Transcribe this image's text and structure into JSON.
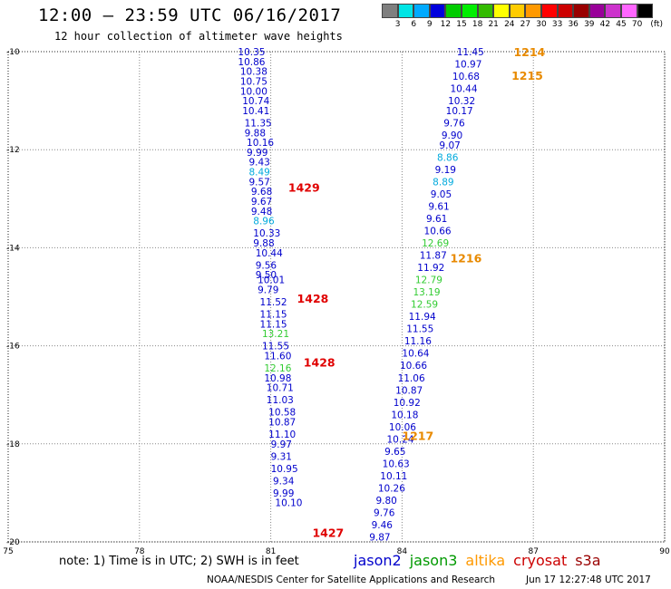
{
  "header": {
    "title": "12:00 — 23:59 UTC 06/16/2017",
    "subtitle": "12 hour collection of altimeter wave heights"
  },
  "color_scale": {
    "colors": [
      "#7f7f7f",
      "#00e5e5",
      "#00aaff",
      "#0000dd",
      "#00cc00",
      "#00ee00",
      "#33bb00",
      "#ffff00",
      "#ffcc00",
      "#ff9900",
      "#ff0000",
      "#cc0000",
      "#990000",
      "#990099",
      "#cc33cc",
      "#ff66ff",
      "#000000"
    ],
    "labels": [
      "3",
      "6",
      "9",
      "12",
      "15",
      "18",
      "21",
      "24",
      "27",
      "30",
      "33",
      "36",
      "39",
      "42",
      "45",
      "70",
      "(ft)"
    ]
  },
  "map": {
    "x_ticks": [
      "75",
      "78",
      "81",
      "84",
      "87",
      "90"
    ],
    "y_ticks": [
      "-10",
      "-12",
      "-14",
      "-16",
      "-18",
      "-20"
    ],
    "lon_range": [
      75,
      90
    ],
    "lat_range": [
      -20,
      -10
    ]
  },
  "chart_data": {
    "type": "scatter",
    "x_unit": "longitude (E)",
    "y_unit": "latitude",
    "track_labels": [
      {
        "text": "1429",
        "color": "#e00000",
        "lon": 81.4,
        "lat": -12.78
      },
      {
        "text": "1428",
        "color": "#e00000",
        "lon": 81.6,
        "lat": -15.05
      },
      {
        "text": "1428",
        "color": "#e00000",
        "lon": 81.75,
        "lat": -16.35
      },
      {
        "text": "1427",
        "color": "#e00000",
        "lon": 81.95,
        "lat": -19.82
      },
      {
        "text": "1214",
        "color": "#e88a00",
        "lon": 86.55,
        "lat": -10.02
      },
      {
        "text": "1215",
        "color": "#e88a00",
        "lon": 86.5,
        "lat": -10.5
      },
      {
        "text": "1216",
        "color": "#e88a00",
        "lon": 85.1,
        "lat": -14.22
      },
      {
        "text": "1217",
        "color": "#e88a00",
        "lon": 84.0,
        "lat": -17.85
      }
    ],
    "pass_1429": [
      {
        "lon": 80.25,
        "lat": -10.0,
        "value": "10.35",
        "color": "#0000cc"
      },
      {
        "lon": 80.25,
        "lat": -10.2,
        "value": "10.86",
        "color": "#0000cc"
      },
      {
        "lon": 80.3,
        "lat": -10.4,
        "value": "10.38",
        "color": "#0000cc"
      },
      {
        "lon": 80.3,
        "lat": -10.6,
        "value": "10.75",
        "color": "#0000cc"
      },
      {
        "lon": 80.3,
        "lat": -10.8,
        "value": "10.00",
        "color": "#0000cc"
      },
      {
        "lon": 80.35,
        "lat": -11.0,
        "value": "10.74",
        "color": "#0000cc"
      },
      {
        "lon": 80.35,
        "lat": -11.2,
        "value": "10.41",
        "color": "#0000cc"
      },
      {
        "lon": 80.4,
        "lat": -11.45,
        "value": "11.35",
        "color": "#0000cc"
      },
      {
        "lon": 80.4,
        "lat": -11.65,
        "value": "9.88",
        "color": "#0000cc"
      },
      {
        "lon": 80.45,
        "lat": -11.85,
        "value": "10.16",
        "color": "#0000cc"
      },
      {
        "lon": 80.45,
        "lat": -12.05,
        "value": "9.99",
        "color": "#0000cc"
      },
      {
        "lon": 80.5,
        "lat": -12.25,
        "value": "9.43",
        "color": "#0000cc"
      },
      {
        "lon": 80.5,
        "lat": -12.45,
        "value": "8.49",
        "color": "#00aadd"
      },
      {
        "lon": 80.5,
        "lat": -12.65,
        "value": "9.57",
        "color": "#0000cc"
      },
      {
        "lon": 80.55,
        "lat": -12.85,
        "value": "9.68",
        "color": "#0000cc"
      },
      {
        "lon": 80.55,
        "lat": -13.05,
        "value": "9.67",
        "color": "#0000cc"
      },
      {
        "lon": 80.55,
        "lat": -13.25,
        "value": "9.48",
        "color": "#0000cc"
      },
      {
        "lon": 80.6,
        "lat": -13.45,
        "value": "8.96",
        "color": "#00aadd"
      },
      {
        "lon": 80.6,
        "lat": -13.7,
        "value": "10.33",
        "color": "#0000cc"
      },
      {
        "lon": 80.6,
        "lat": -13.9,
        "value": "9.88",
        "color": "#0000cc"
      },
      {
        "lon": 80.65,
        "lat": -14.1,
        "value": "10.44",
        "color": "#0000cc"
      },
      {
        "lon": 80.65,
        "lat": -14.35,
        "value": "9.56",
        "color": "#0000cc"
      },
      {
        "lon": 80.65,
        "lat": -14.55,
        "value": "9.50",
        "color": "#0000cc"
      }
    ],
    "pass_1428": [
      {
        "lon": 80.7,
        "lat": -14.65,
        "value": "10.01",
        "color": "#0000cc"
      },
      {
        "lon": 80.7,
        "lat": -14.85,
        "value": "9.79",
        "color": "#0000cc"
      },
      {
        "lon": 80.75,
        "lat": -15.1,
        "value": "11.52",
        "color": "#0000cc"
      },
      {
        "lon": 80.75,
        "lat": -15.35,
        "value": "11.15",
        "color": "#0000cc"
      },
      {
        "lon": 80.75,
        "lat": -15.55,
        "value": "11.15",
        "color": "#0000cc"
      },
      {
        "lon": 80.8,
        "lat": -15.75,
        "value": "13.21",
        "color": "#33cc33"
      },
      {
        "lon": 80.8,
        "lat": -16.0,
        "value": "11.55",
        "color": "#0000cc"
      },
      {
        "lon": 80.85,
        "lat": -16.2,
        "value": "11.60",
        "color": "#0000cc"
      },
      {
        "lon": 80.85,
        "lat": -16.45,
        "value": "12.16",
        "color": "#33cc33"
      },
      {
        "lon": 80.85,
        "lat": -16.65,
        "value": "10.98",
        "color": "#0000cc"
      },
      {
        "lon": 80.9,
        "lat": -16.85,
        "value": "10.71",
        "color": "#0000cc"
      }
    ],
    "pass_1427": [
      {
        "lon": 80.9,
        "lat": -17.1,
        "value": "11.03",
        "color": "#0000cc"
      },
      {
        "lon": 80.95,
        "lat": -17.35,
        "value": "10.58",
        "color": "#0000cc"
      },
      {
        "lon": 80.95,
        "lat": -17.55,
        "value": "10.87",
        "color": "#0000cc"
      },
      {
        "lon": 80.95,
        "lat": -17.8,
        "value": "11.10",
        "color": "#0000cc"
      },
      {
        "lon": 81.0,
        "lat": -18.0,
        "value": "9.97",
        "color": "#0000cc"
      },
      {
        "lon": 81.0,
        "lat": -18.25,
        "value": "9.31",
        "color": "#0000cc"
      },
      {
        "lon": 81.0,
        "lat": -18.5,
        "value": "10.95",
        "color": "#0000cc"
      },
      {
        "lon": 81.05,
        "lat": -18.75,
        "value": "9.34",
        "color": "#0000cc"
      },
      {
        "lon": 81.05,
        "lat": -19.0,
        "value": "9.99",
        "color": "#0000cc"
      },
      {
        "lon": 81.1,
        "lat": -19.2,
        "value": "10.10",
        "color": "#0000cc"
      }
    ],
    "pass_1214_1217": [
      {
        "lon": 85.25,
        "lat": -10.0,
        "value": "11.45",
        "color": "#0000cc"
      },
      {
        "lon": 85.2,
        "lat": -10.25,
        "value": "10.97",
        "color": "#0000cc"
      },
      {
        "lon": 85.15,
        "lat": -10.5,
        "value": "10.68",
        "color": "#0000cc"
      },
      {
        "lon": 85.1,
        "lat": -10.75,
        "value": "10.44",
        "color": "#0000cc"
      },
      {
        "lon": 85.05,
        "lat": -11.0,
        "value": "10.32",
        "color": "#0000cc"
      },
      {
        "lon": 85.0,
        "lat": -11.2,
        "value": "10.17",
        "color": "#0000cc"
      },
      {
        "lon": 84.95,
        "lat": -11.45,
        "value": "9.76",
        "color": "#0000cc"
      },
      {
        "lon": 84.9,
        "lat": -11.7,
        "value": "9.90",
        "color": "#0000cc"
      },
      {
        "lon": 84.85,
        "lat": -11.9,
        "value": "9.07",
        "color": "#0000cc"
      },
      {
        "lon": 84.8,
        "lat": -12.15,
        "value": "8.86",
        "color": "#00aadd"
      },
      {
        "lon": 84.75,
        "lat": -12.4,
        "value": "9.19",
        "color": "#0000cc"
      },
      {
        "lon": 84.7,
        "lat": -12.65,
        "value": "8.89",
        "color": "#00aadd"
      },
      {
        "lon": 84.65,
        "lat": -12.9,
        "value": "9.05",
        "color": "#0000cc"
      },
      {
        "lon": 84.6,
        "lat": -13.15,
        "value": "9.61",
        "color": "#0000cc"
      },
      {
        "lon": 84.55,
        "lat": -13.4,
        "value": "9.61",
        "color": "#0000cc"
      },
      {
        "lon": 84.5,
        "lat": -13.65,
        "value": "10.66",
        "color": "#0000cc"
      },
      {
        "lon": 84.45,
        "lat": -13.9,
        "value": "12.69",
        "color": "#33cc33"
      },
      {
        "lon": 84.4,
        "lat": -14.15,
        "value": "11.87",
        "color": "#0000cc"
      },
      {
        "lon": 84.35,
        "lat": -14.4,
        "value": "11.92",
        "color": "#0000cc"
      },
      {
        "lon": 84.3,
        "lat": -14.65,
        "value": "12.79",
        "color": "#33cc33"
      },
      {
        "lon": 84.25,
        "lat": -14.9,
        "value": "13.19",
        "color": "#33cc33"
      },
      {
        "lon": 84.2,
        "lat": -15.15,
        "value": "12.59",
        "color": "#33cc33"
      },
      {
        "lon": 84.15,
        "lat": -15.4,
        "value": "11.94",
        "color": "#0000cc"
      },
      {
        "lon": 84.1,
        "lat": -15.65,
        "value": "11.55",
        "color": "#0000cc"
      },
      {
        "lon": 84.05,
        "lat": -15.9,
        "value": "11.16",
        "color": "#0000cc"
      },
      {
        "lon": 84.0,
        "lat": -16.15,
        "value": "10.64",
        "color": "#0000cc"
      },
      {
        "lon": 83.95,
        "lat": -16.4,
        "value": "10.66",
        "color": "#0000cc"
      },
      {
        "lon": 83.9,
        "lat": -16.65,
        "value": "11.06",
        "color": "#0000cc"
      },
      {
        "lon": 83.85,
        "lat": -16.9,
        "value": "10.87",
        "color": "#0000cc"
      },
      {
        "lon": 83.8,
        "lat": -17.15,
        "value": "10.92",
        "color": "#0000cc"
      },
      {
        "lon": 83.75,
        "lat": -17.4,
        "value": "10.18",
        "color": "#0000cc"
      },
      {
        "lon": 83.7,
        "lat": -17.65,
        "value": "10.06",
        "color": "#0000cc"
      },
      {
        "lon": 83.65,
        "lat": -17.9,
        "value": "10.24",
        "color": "#0000cc"
      },
      {
        "lon": 83.6,
        "lat": -18.15,
        "value": "9.65",
        "color": "#0000cc"
      },
      {
        "lon": 83.55,
        "lat": -18.4,
        "value": "10.63",
        "color": "#0000cc"
      },
      {
        "lon": 83.5,
        "lat": -18.65,
        "value": "10.11",
        "color": "#0000cc"
      },
      {
        "lon": 83.45,
        "lat": -18.9,
        "value": "10.26",
        "color": "#0000cc"
      },
      {
        "lon": 83.4,
        "lat": -19.15,
        "value": "9.80",
        "color": "#0000cc"
      },
      {
        "lon": 83.35,
        "lat": -19.4,
        "value": "9.76",
        "color": "#0000cc"
      },
      {
        "lon": 83.3,
        "lat": -19.65,
        "value": "9.46",
        "color": "#0000cc"
      },
      {
        "lon": 83.25,
        "lat": -19.9,
        "value": "9.87",
        "color": "#0000cc"
      }
    ]
  },
  "footer": {
    "note": "note: 1) Time is in UTC; 2) SWH is in feet",
    "satellites": [
      {
        "name": "jason2",
        "color": "#0000cc"
      },
      {
        "name": "jason3",
        "color": "#009900"
      },
      {
        "name": "altika",
        "color": "#ff9900"
      },
      {
        "name": "cryosat",
        "color": "#cc0000"
      },
      {
        "name": "s3a",
        "color": "#990000"
      }
    ],
    "credit": "NOAA/NESDIS Center for Satellite Applications and Research",
    "timestamp": "Jun 17 12:27:48 UTC 2017"
  }
}
